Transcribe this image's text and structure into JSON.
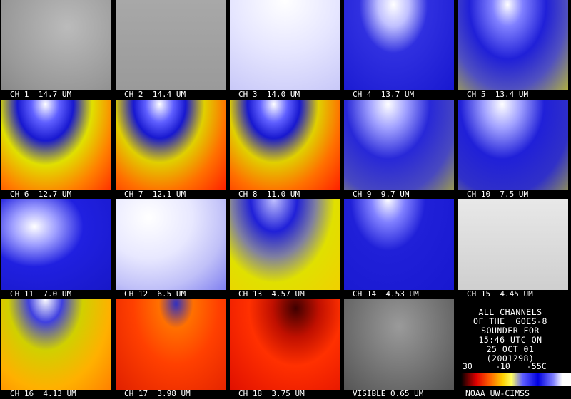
{
  "tiles": [
    "CH 1  14.7 UM",
    "CH 2  14.4 UM",
    "CH 3  14.0 UM",
    "CH 4  13.7 UM",
    "CH 5  13.4 UM",
    "CH 6  12.7 UM",
    "CH 7  12.1 UM",
    "CH 8  11.0 UM",
    "CH 9  9.7 UM",
    "CH 10  7.5 UM",
    "CH 11  7.0 UM",
    "CH 12  6.5 UM",
    "CH 13  4.57 UM",
    "CH 14  4.53 UM",
    "CH 15  4.45 UM",
    "CH 16  4.13 UM",
    "CH 17  3.98 UM",
    "CH 18  3.75 UM",
    "VISIBLE 0.65 UM"
  ],
  "info": {
    "lines": [
      "ALL CHANNELS",
      "OF THE  GOES-8",
      "SOUNDER FOR",
      "15:46 UTC ON",
      "25 OCT 01",
      "(2001298)"
    ],
    "scale": [
      "30",
      "-10",
      "-55C"
    ],
    "credit": "NOAA UW-CIMSS"
  }
}
